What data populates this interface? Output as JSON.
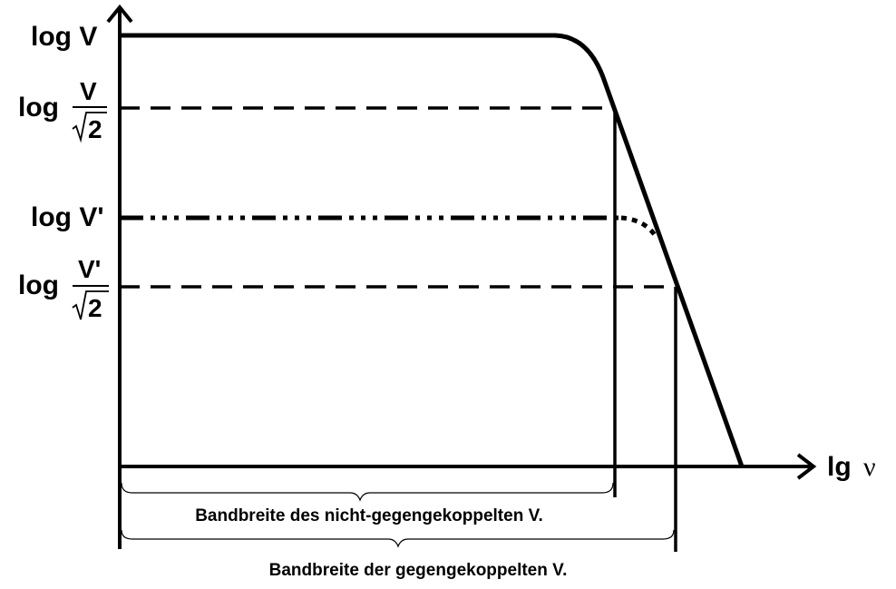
{
  "diagram": {
    "y_labels": {
      "log_v": "log V",
      "log_v_sqrt2": {
        "log": "log",
        "num": "V",
        "den": "2"
      },
      "log_v_prime": "log V'",
      "log_v_prime_sqrt2": {
        "log": "log",
        "num": "V'",
        "den": "2"
      }
    },
    "x_label": {
      "prefix": "lg",
      "symbol": "ν"
    },
    "brace_labels": {
      "inner": "Bandbreite des nicht-gegengekoppelten V.",
      "outer": "Bandbreite der gegengekoppelten V."
    }
  }
}
